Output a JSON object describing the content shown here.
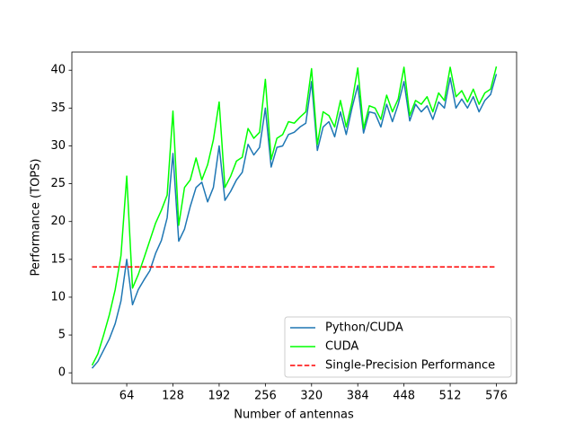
{
  "chart_data": {
    "type": "line",
    "xlabel": "Number of antennas",
    "ylabel": "Performance (TOPS)",
    "x": [
      16,
      24,
      32,
      40,
      48,
      56,
      64,
      72,
      80,
      88,
      96,
      104,
      112,
      120,
      128,
      136,
      144,
      152,
      160,
      168,
      176,
      184,
      192,
      200,
      208,
      216,
      224,
      232,
      240,
      248,
      256,
      264,
      272,
      280,
      288,
      296,
      304,
      312,
      320,
      328,
      336,
      344,
      352,
      360,
      368,
      376,
      384,
      392,
      400,
      408,
      416,
      424,
      432,
      440,
      448,
      456,
      464,
      472,
      480,
      488,
      496,
      504,
      512,
      520,
      528,
      536,
      544,
      552,
      560,
      568,
      576
    ],
    "series": [
      {
        "name": "Python/CUDA",
        "color": "#1f77b4",
        "dashed": false,
        "values": [
          0.6,
          1.5,
          3.0,
          4.5,
          6.5,
          9.5,
          15.0,
          9.0,
          11.0,
          12.3,
          13.5,
          15.8,
          17.5,
          20.5,
          29.0,
          17.4,
          19.0,
          22.0,
          24.5,
          25.2,
          22.6,
          24.5,
          30.0,
          22.8,
          24.0,
          25.5,
          26.5,
          30.2,
          28.8,
          29.8,
          35.0,
          27.2,
          29.8,
          30.0,
          31.5,
          31.8,
          32.5,
          33.0,
          38.5,
          29.4,
          32.5,
          33.2,
          31.2,
          34.5,
          31.5,
          35.0,
          38.0,
          31.7,
          34.5,
          34.3,
          32.5,
          35.5,
          33.2,
          35.5,
          38.5,
          33.3,
          35.5,
          34.5,
          35.3,
          33.5,
          35.8,
          35.0,
          39.0,
          35.0,
          36.2,
          35.0,
          36.5,
          34.5,
          36.0,
          36.8,
          39.5
        ]
      },
      {
        "name": "CUDA",
        "color": "#00ff00",
        "dashed": false,
        "values": [
          1.0,
          2.5,
          5.0,
          7.7,
          11.0,
          15.5,
          26.0,
          11.2,
          13.0,
          15.2,
          17.5,
          19.8,
          21.5,
          23.5,
          34.6,
          19.5,
          24.5,
          25.5,
          28.4,
          25.5,
          27.5,
          30.8,
          35.8,
          24.5,
          26.0,
          28.0,
          28.5,
          32.3,
          31.0,
          31.8,
          38.8,
          28.2,
          31.0,
          31.5,
          33.2,
          33.0,
          33.8,
          34.5,
          40.2,
          30.2,
          34.5,
          34.0,
          32.5,
          36.0,
          32.5,
          35.8,
          40.3,
          32.3,
          35.3,
          35.0,
          33.5,
          36.7,
          34.5,
          36.2,
          40.4,
          34.0,
          36.0,
          35.5,
          36.5,
          34.5,
          37.0,
          36.0,
          40.4,
          36.5,
          37.3,
          35.8,
          37.5,
          35.5,
          37.0,
          37.5,
          40.5
        ]
      },
      {
        "name": "Single-Precision Performance",
        "color": "#ff0000",
        "dashed": true,
        "x": [
          16,
          576
        ],
        "values": [
          14,
          14
        ]
      }
    ],
    "xlim": [
      -12,
      604
    ],
    "ylim": [
      -1.4,
      42.4
    ],
    "xticks": [
      64,
      128,
      192,
      256,
      320,
      384,
      448,
      512,
      576
    ],
    "yticks": [
      0,
      5,
      10,
      15,
      20,
      25,
      30,
      35,
      40
    ],
    "legend": "lower right"
  }
}
